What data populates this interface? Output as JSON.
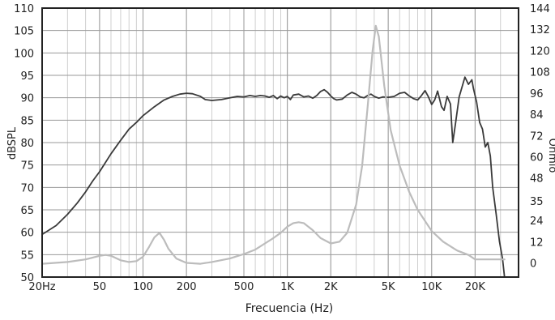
{
  "chart_data": {
    "type": "line",
    "xlabel": "Frecuencia (Hz)",
    "ylabel": "dBSPL",
    "ylabel_right": "Ohmio",
    "xscale": "log",
    "xlim": [
      20,
      40000
    ],
    "ylim": [
      50,
      110
    ],
    "ylim_right": [
      -8,
      144
    ],
    "grid": true,
    "x_ticks": [
      {
        "value": 20,
        "label": "20Hz"
      },
      {
        "value": 50,
        "label": "50"
      },
      {
        "value": 100,
        "label": "100"
      },
      {
        "value": 200,
        "label": "200"
      },
      {
        "value": 500,
        "label": "500"
      },
      {
        "value": 1000,
        "label": "1K"
      },
      {
        "value": 2000,
        "label": "2K"
      },
      {
        "value": 5000,
        "label": "5K"
      },
      {
        "value": 10000,
        "label": "10K"
      },
      {
        "value": 20000,
        "label": "20K"
      }
    ],
    "y_ticks": [
      {
        "value": 110,
        "label": "110"
      },
      {
        "value": 105,
        "label": "105"
      },
      {
        "value": 100,
        "label": "100"
      },
      {
        "value": 95,
        "label": "95"
      },
      {
        "value": 90,
        "label": "90"
      },
      {
        "value": 85,
        "label": "85"
      },
      {
        "value": 80,
        "label": "80"
      },
      {
        "value": 75,
        "label": "75"
      },
      {
        "value": 70,
        "label": "70"
      },
      {
        "value": 65,
        "label": "65"
      },
      {
        "value": 60,
        "label": "60"
      },
      {
        "value": 55,
        "label": "55"
      },
      {
        "value": 50,
        "label": "50"
      }
    ],
    "y_ticks_right": [
      {
        "value": 144,
        "label": "144"
      },
      {
        "value": 132,
        "label": "132"
      },
      {
        "value": 120,
        "label": "120"
      },
      {
        "value": 108,
        "label": "108"
      },
      {
        "value": 96,
        "label": "96"
      },
      {
        "value": 84,
        "label": "84"
      },
      {
        "value": 72,
        "label": "72"
      },
      {
        "value": 60,
        "label": "60"
      },
      {
        "value": 48,
        "label": "48"
      },
      {
        "value": 35,
        "label": "35"
      },
      {
        "value": 24,
        "label": "24"
      },
      {
        "value": 12,
        "label": "12"
      },
      {
        "value": 0,
        "label": "0"
      }
    ],
    "series": [
      {
        "axis": "left",
        "color": "#3a3a3a",
        "points": [
          [
            20,
            59.5
          ],
          [
            25,
            61.5
          ],
          [
            30,
            64
          ],
          [
            35,
            66.5
          ],
          [
            40,
            69
          ],
          [
            45,
            71.5
          ],
          [
            50,
            73.5
          ],
          [
            60,
            77.5
          ],
          [
            70,
            80.5
          ],
          [
            80,
            83
          ],
          [
            90,
            84.5
          ],
          [
            100,
            86
          ],
          [
            120,
            88
          ],
          [
            140,
            89.5
          ],
          [
            160,
            90.3
          ],
          [
            180,
            90.8
          ],
          [
            200,
            91
          ],
          [
            220,
            90.9
          ],
          [
            250,
            90.3
          ],
          [
            270,
            89.6
          ],
          [
            300,
            89.4
          ],
          [
            350,
            89.6
          ],
          [
            400,
            90
          ],
          [
            450,
            90.3
          ],
          [
            500,
            90.2
          ],
          [
            550,
            90.5
          ],
          [
            600,
            90.3
          ],
          [
            650,
            90.5
          ],
          [
            700,
            90.4
          ],
          [
            750,
            90.1
          ],
          [
            800,
            90.5
          ],
          [
            850,
            89.8
          ],
          [
            900,
            90.4
          ],
          [
            950,
            90
          ],
          [
            1000,
            90.3
          ],
          [
            1050,
            89.6
          ],
          [
            1100,
            90.6
          ],
          [
            1200,
            90.8
          ],
          [
            1300,
            90.2
          ],
          [
            1400,
            90.4
          ],
          [
            1500,
            89.9
          ],
          [
            1600,
            90.5
          ],
          [
            1700,
            91.4
          ],
          [
            1800,
            91.8
          ],
          [
            1900,
            91.2
          ],
          [
            2000,
            90.4
          ],
          [
            2100,
            89.8
          ],
          [
            2200,
            89.5
          ],
          [
            2400,
            89.7
          ],
          [
            2600,
            90.6
          ],
          [
            2800,
            91.2
          ],
          [
            3000,
            90.8
          ],
          [
            3200,
            90.2
          ],
          [
            3400,
            90
          ],
          [
            3600,
            90.5
          ],
          [
            3800,
            90.8
          ],
          [
            4000,
            90.3
          ],
          [
            4300,
            89.9
          ],
          [
            4600,
            90.2
          ],
          [
            5000,
            90.1
          ],
          [
            5500,
            90.3
          ],
          [
            6000,
            91
          ],
          [
            6500,
            91.2
          ],
          [
            7000,
            90.4
          ],
          [
            7500,
            89.8
          ],
          [
            8000,
            89.5
          ],
          [
            8500,
            90.5
          ],
          [
            9000,
            91.6
          ],
          [
            9500,
            90.2
          ],
          [
            10000,
            88.5
          ],
          [
            10500,
            89.5
          ],
          [
            11000,
            91.5
          ],
          [
            11700,
            88
          ],
          [
            12200,
            87.2
          ],
          [
            12800,
            90.3
          ],
          [
            13500,
            88.6
          ],
          [
            14000,
            80
          ],
          [
            14600,
            84
          ],
          [
            15500,
            90.2
          ],
          [
            17000,
            94.6
          ],
          [
            18000,
            93
          ],
          [
            19000,
            94
          ],
          [
            19500,
            92
          ],
          [
            20500,
            89
          ],
          [
            21500,
            84.5
          ],
          [
            22500,
            83
          ],
          [
            23500,
            79
          ],
          [
            24500,
            80
          ],
          [
            25500,
            77
          ],
          [
            26500,
            70
          ],
          [
            28000,
            64
          ],
          [
            29500,
            58
          ],
          [
            31000,
            54
          ],
          [
            32000,
            50
          ]
        ]
      },
      {
        "axis": "right",
        "color": "#bcbcbc",
        "points": [
          [
            20,
            -0.5
          ],
          [
            30,
            0.5
          ],
          [
            40,
            2
          ],
          [
            50,
            4
          ],
          [
            55,
            4.5
          ],
          [
            60,
            4
          ],
          [
            70,
            1.5
          ],
          [
            80,
            0.5
          ],
          [
            90,
            1
          ],
          [
            100,
            3.5
          ],
          [
            110,
            9
          ],
          [
            120,
            14.5
          ],
          [
            130,
            17
          ],
          [
            140,
            13
          ],
          [
            150,
            8
          ],
          [
            170,
            2.5
          ],
          [
            200,
            0
          ],
          [
            250,
            -0.5
          ],
          [
            300,
            0.5
          ],
          [
            400,
            2.5
          ],
          [
            500,
            5
          ],
          [
            600,
            7.5
          ],
          [
            700,
            11
          ],
          [
            800,
            14
          ],
          [
            900,
            17
          ],
          [
            1000,
            20.5
          ],
          [
            1100,
            22.5
          ],
          [
            1200,
            23
          ],
          [
            1300,
            22.5
          ],
          [
            1500,
            18.5
          ],
          [
            1700,
            14
          ],
          [
            2000,
            11
          ],
          [
            2300,
            12
          ],
          [
            2600,
            17
          ],
          [
            3000,
            33
          ],
          [
            3300,
            55
          ],
          [
            3600,
            88
          ],
          [
            3900,
            120
          ],
          [
            4100,
            134
          ],
          [
            4300,
            128
          ],
          [
            4700,
            100
          ],
          [
            5200,
            75
          ],
          [
            6000,
            55
          ],
          [
            7000,
            40
          ],
          [
            8000,
            30
          ],
          [
            10000,
            18
          ],
          [
            12000,
            12
          ],
          [
            15000,
            7
          ],
          [
            18000,
            4.5
          ],
          [
            20000,
            2
          ],
          [
            25000,
            2
          ],
          [
            30000,
            2
          ],
          [
            32000,
            2
          ]
        ]
      }
    ]
  }
}
